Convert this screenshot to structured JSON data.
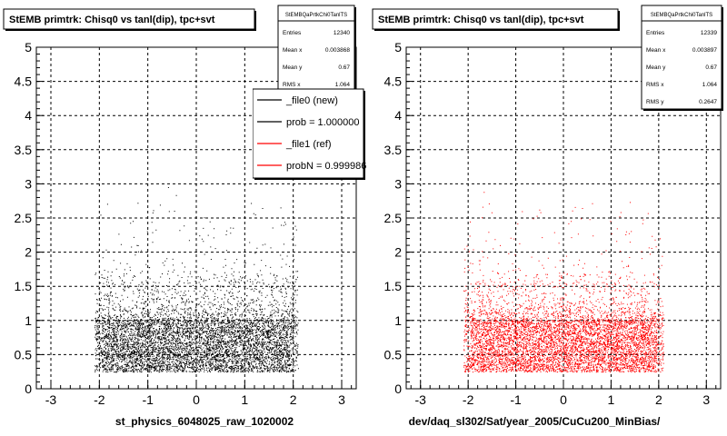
{
  "chart_data": [
    {
      "type": "scatter",
      "title": "StEMB primtrk: Chisq0 vs tanl(dip), tpc+svt",
      "xlabel": "st_physics_6048025_raw_1020002",
      "ylabel": "",
      "xlim": [
        -3.3,
        3.3
      ],
      "ylim": [
        0,
        5
      ],
      "x_ticks": [
        "-3",
        "-2",
        "-1",
        "0",
        "1",
        "2",
        "3"
      ],
      "y_ticks": [
        "0",
        "0.5",
        "1",
        "1.5",
        "2",
        "2.5",
        "3",
        "3.5",
        "4",
        "4.5",
        "5"
      ],
      "grid": true,
      "marker_color": "#000000",
      "stats": {
        "name": "StEMBQaPrtkChi0TanlTS",
        "rows": [
          {
            "label": "Entries",
            "value": "12340"
          },
          {
            "label": "Mean x",
            "value": "0.003868"
          },
          {
            "label": "Mean y",
            "value": "0.67"
          },
          {
            "label": "RMS x",
            "value": "1.064"
          }
        ]
      },
      "legend": {
        "placement": "top-right",
        "entries": [
          {
            "label": "_file0 (new)",
            "color": "#000000"
          },
          {
            "label": "prob = 1.000000",
            "color": "#000000"
          },
          {
            "label": "_file1 (ref)",
            "color": "#ff0000"
          },
          {
            "label": "probN = 0.999986",
            "color": "#ff0000"
          }
        ]
      },
      "distribution": {
        "x_range": [
          -2.1,
          2.1
        ],
        "y_core_range": [
          0.25,
          1.0
        ],
        "tail_max": 3.0,
        "n_points": 7000,
        "seed": 17
      }
    },
    {
      "type": "scatter",
      "title": "StEMB primtrk: Chisq0 vs tanl(dip), tpc+svt",
      "xlabel": "dev/daq_sl302/Sat/year_2005/CuCu200_MinBias/",
      "ylabel": "",
      "xlim": [
        -3.3,
        3.3
      ],
      "ylim": [
        0,
        5
      ],
      "x_ticks": [
        "-3",
        "-2",
        "-1",
        "0",
        "1",
        "2",
        "3"
      ],
      "y_ticks": [
        "0",
        "0.5",
        "1",
        "1.5",
        "2",
        "2.5",
        "3",
        "3.5",
        "4",
        "4.5",
        "5"
      ],
      "grid": true,
      "marker_color": "#ff0000",
      "stats": {
        "name": "StEMBQaPrtkChi0TanlTS",
        "rows": [
          {
            "label": "Entries",
            "value": "12339"
          },
          {
            "label": "Mean x",
            "value": "0.003897"
          },
          {
            "label": "Mean y",
            "value": "0.67"
          },
          {
            "label": "RMS x",
            "value": "1.064"
          },
          {
            "label": "RMS y",
            "value": "0.2647"
          }
        ]
      },
      "legend": null,
      "distribution": {
        "x_range": [
          -2.1,
          2.1
        ],
        "y_core_range": [
          0.25,
          1.0
        ],
        "tail_max": 3.0,
        "n_points": 7000,
        "seed": 29
      }
    }
  ]
}
